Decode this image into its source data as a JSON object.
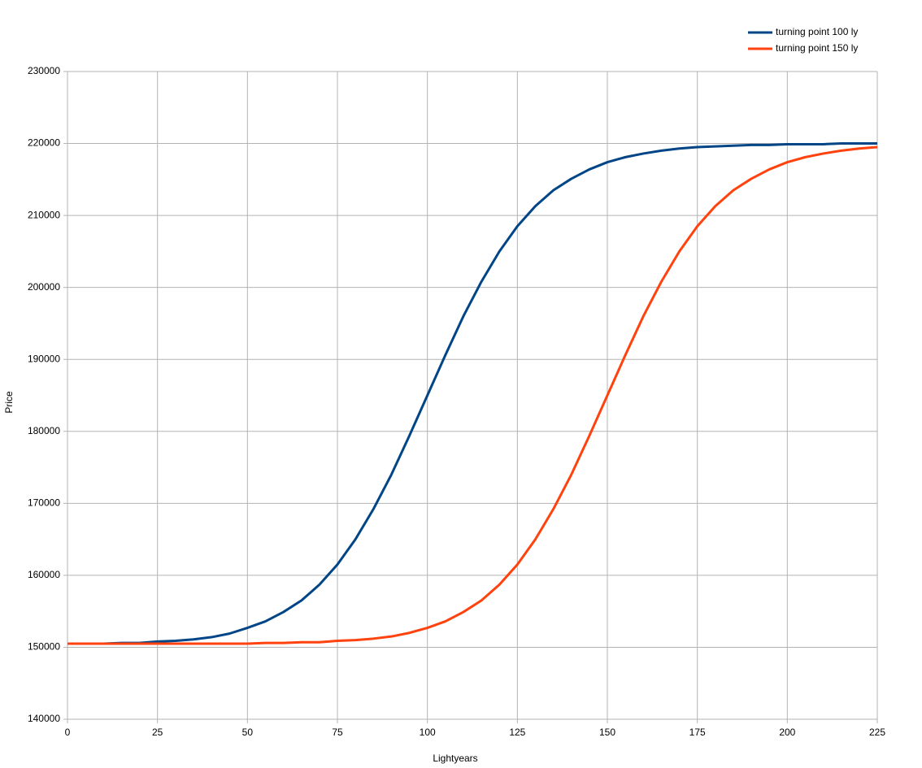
{
  "chart_data": {
    "type": "line",
    "x_label": "Lightyears",
    "y_label": "Price",
    "x": [
      0,
      5,
      10,
      15,
      20,
      25,
      30,
      35,
      40,
      45,
      50,
      55,
      60,
      65,
      70,
      75,
      80,
      85,
      90,
      95,
      100,
      105,
      110,
      115,
      120,
      125,
      130,
      135,
      140,
      145,
      150,
      155,
      160,
      165,
      170,
      175,
      180,
      185,
      190,
      195,
      200,
      205,
      210,
      215,
      220,
      225
    ],
    "series": [
      {
        "name": "turning point 100 ly",
        "color": "#004586",
        "values": [
          150500,
          150500,
          150500,
          150600,
          150600,
          150800,
          150900,
          151100,
          151400,
          151900,
          152700,
          153600,
          154900,
          156500,
          158700,
          161500,
          165000,
          169200,
          174000,
          179400,
          185000,
          190600,
          196000,
          200800,
          205000,
          208500,
          211300,
          213500,
          215100,
          216400,
          217400,
          218100,
          218600,
          219000,
          219300,
          219500,
          219600,
          219700,
          219800,
          219800,
          219900,
          219900,
          219900,
          220000,
          220000,
          220000
        ]
      },
      {
        "name": "turning point 150 ly",
        "color": "#ff420e",
        "values": [
          150500,
          150500,
          150500,
          150500,
          150500,
          150500,
          150500,
          150500,
          150500,
          150500,
          150500,
          150600,
          150600,
          150700,
          150700,
          150900,
          151000,
          151200,
          151500,
          152000,
          152700,
          153600,
          154900,
          156500,
          158700,
          161500,
          165000,
          169200,
          174000,
          179400,
          185000,
          190600,
          196000,
          200800,
          205000,
          208500,
          211300,
          213500,
          215100,
          216400,
          217400,
          218100,
          218600,
          219000,
          219300,
          219500
        ]
      }
    ],
    "xlim": [
      0,
      225
    ],
    "xticks": [
      0,
      25,
      50,
      75,
      100,
      125,
      150,
      175,
      200,
      225
    ],
    "ylim": [
      140000,
      230000
    ],
    "yticks": [
      140000,
      150000,
      160000,
      170000,
      180000,
      190000,
      200000,
      210000,
      220000,
      230000
    ],
    "grid": true,
    "legend": "top-right"
  }
}
